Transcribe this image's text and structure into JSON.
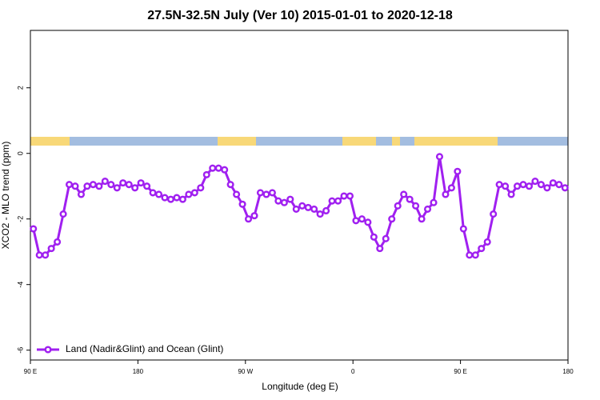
{
  "chart_data": {
    "type": "line",
    "title": "27.5N-32.5N July (Ver 10)   2015-01-01 to 2020-12-18",
    "xlabel": "Longitude (deg E)",
    "ylabel": "XCO2 - MLO trend (ppm)",
    "xlim": [
      90,
      540
    ],
    "xticks": [
      {
        "value": 90,
        "label": "90 E"
      },
      180,
      {
        "value": 270,
        "label": "90 W"
      },
      {
        "value": 360,
        "label": "0"
      },
      {
        "value": 450,
        "label": "90 E"
      },
      {
        "value": 540,
        "label": "180"
      }
    ],
    "ylim": [
      -6.3,
      3.75
    ],
    "yticks": [
      -6,
      -4,
      -2,
      0,
      2
    ],
    "grid": false,
    "legend": "bottom-left",
    "x": [
      92.5,
      97.5,
      102.5,
      107.5,
      112.5,
      117.5,
      122.5,
      127.5,
      132.5,
      137.5,
      142.5,
      147.5,
      152.5,
      157.5,
      162.5,
      167.5,
      172.5,
      177.5,
      182.5,
      187.5,
      192.5,
      197.5,
      202.5,
      207.5,
      212.5,
      217.5,
      222.5,
      227.5,
      232.5,
      237.5,
      242.5,
      247.5,
      252.5,
      257.5,
      262.5,
      267.5,
      272.5,
      277.5,
      282.5,
      287.5,
      292.5,
      297.5,
      302.5,
      307.5,
      312.5,
      317.5,
      322.5,
      327.5,
      332.5,
      337.5,
      342.5,
      347.5,
      352.5,
      357.5,
      362.5,
      367.5,
      372.5,
      377.5,
      382.5,
      387.5,
      392.5,
      397.5,
      402.5,
      407.5,
      412.5,
      417.5,
      422.5,
      427.5,
      432.5,
      437.5,
      442.5,
      447.5,
      452.5,
      457.5,
      462.5,
      467.5,
      472.5,
      477.5,
      482.5,
      487.5,
      492.5,
      497.5,
      502.5,
      507.5,
      512.5,
      517.5,
      522.5,
      527.5,
      532.5,
      537.5
    ],
    "series": [
      {
        "name": "Land (Nadir&Glint) and Ocean (Glint)",
        "color": "#a020f0",
        "values": [
          -2.3,
          -3.1,
          -3.1,
          -2.9,
          -2.7,
          -1.85,
          -0.95,
          -1.0,
          -1.25,
          -1.0,
          -0.95,
          -1.0,
          -0.85,
          -0.95,
          -1.05,
          -0.9,
          -0.95,
          -1.05,
          -0.9,
          -1.0,
          -1.2,
          -1.25,
          -1.35,
          -1.4,
          -1.35,
          -1.4,
          -1.25,
          -1.2,
          -1.05,
          -0.65,
          -0.45,
          -0.45,
          -0.5,
          -0.95,
          -1.25,
          -1.55,
          -2.0,
          -1.9,
          -1.2,
          -1.25,
          -1.2,
          -1.45,
          -1.5,
          -1.4,
          -1.7,
          -1.6,
          -1.65,
          -1.7,
          -1.85,
          -1.75,
          -1.45,
          -1.45,
          -1.3,
          -1.3,
          -2.05,
          -2.0,
          -2.1,
          -2.55,
          -2.9,
          -2.6,
          -2.0,
          -1.6,
          -1.25,
          -1.4,
          -1.6,
          -2.0,
          -1.7,
          -1.5,
          -0.1,
          -1.25,
          -1.05,
          -0.55,
          -2.3,
          -3.1,
          -3.1,
          -2.9,
          -2.7,
          -1.85,
          -0.95,
          -1.0,
          -1.25,
          -1.0,
          -0.95,
          -1.0,
          -0.85,
          -0.95,
          -1.05,
          -0.9,
          -0.95,
          -1.05
        ]
      }
    ]
  }
}
